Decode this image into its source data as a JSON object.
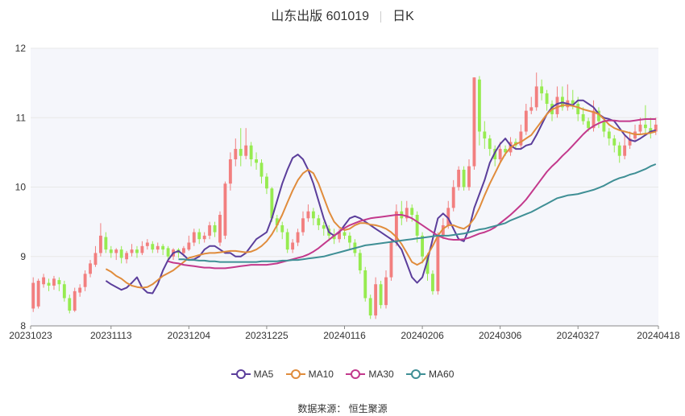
{
  "title": {
    "stock": "山东出版 601019",
    "period": "日K"
  },
  "source": "数据来源： 恒生聚源",
  "colors": {
    "up": "#f27f7f",
    "down": "#96eb50",
    "grid": "#e8e8e8",
    "plot_bg": "#f5f6fb"
  },
  "chart_data": {
    "type": "candlestick",
    "ylim": [
      8,
      12
    ],
    "yticks": [
      8,
      9,
      10,
      11,
      12
    ],
    "x_tick_labels": [
      "20231023",
      "20231113",
      "20231204",
      "20231225",
      "20240116",
      "20240206",
      "20240306",
      "20240327",
      "20240418"
    ],
    "x_tick_index": [
      0,
      15,
      30,
      45,
      60,
      75,
      90,
      105,
      120
    ],
    "num_days": 121,
    "legend": [
      {
        "name": "MA5",
        "color": "#5b3e9b"
      },
      {
        "name": "MA10",
        "color": "#e08c3c"
      },
      {
        "name": "MA30",
        "color": "#c3398c"
      },
      {
        "name": "MA60",
        "color": "#3f8f95"
      }
    ],
    "candles_ohlc": [
      [
        8.25,
        8.62,
        8.2,
        8.7
      ],
      [
        8.28,
        8.65,
        8.25,
        8.68
      ],
      [
        8.6,
        8.7,
        8.55,
        8.75
      ],
      [
        8.62,
        8.58,
        8.5,
        8.68
      ],
      [
        8.58,
        8.68,
        8.52,
        8.72
      ],
      [
        8.66,
        8.6,
        8.5,
        8.7
      ],
      [
        8.6,
        8.4,
        8.35,
        8.65
      ],
      [
        8.4,
        8.22,
        8.18,
        8.45
      ],
      [
        8.22,
        8.5,
        8.2,
        8.55
      ],
      [
        8.48,
        8.55,
        8.42,
        8.6
      ],
      [
        8.56,
        8.75,
        8.5,
        8.8
      ],
      [
        8.75,
        8.9,
        8.7,
        8.95
      ],
      [
        8.88,
        9.05,
        8.85,
        9.15
      ],
      [
        9.05,
        9.3,
        9.0,
        9.48
      ],
      [
        9.28,
        9.1,
        9.05,
        9.35
      ],
      [
        9.1,
        9.05,
        8.98,
        9.15
      ],
      [
        9.05,
        9.1,
        8.95,
        9.12
      ],
      [
        9.1,
        8.98,
        8.9,
        9.15
      ],
      [
        8.96,
        9.05,
        8.9,
        9.08
      ],
      [
        9.05,
        9.1,
        9.0,
        9.18
      ],
      [
        9.1,
        9.05,
        8.98,
        9.15
      ],
      [
        9.05,
        9.15,
        9.02,
        9.22
      ],
      [
        9.15,
        9.2,
        9.1,
        9.25
      ],
      [
        9.18,
        9.1,
        9.05,
        9.22
      ],
      [
        9.1,
        9.15,
        9.05,
        9.2
      ],
      [
        9.15,
        9.1,
        9.02,
        9.18
      ],
      [
        9.12,
        9.0,
        8.95,
        9.15
      ],
      [
        9.0,
        9.1,
        8.95,
        9.12
      ],
      [
        9.1,
        9.05,
        8.98,
        9.12
      ],
      [
        9.05,
        9.12,
        9.0,
        9.15
      ],
      [
        9.1,
        9.2,
        9.08,
        9.3
      ],
      [
        9.2,
        9.35,
        9.15,
        9.4
      ],
      [
        9.35,
        9.25,
        9.18,
        9.4
      ],
      [
        9.25,
        9.3,
        9.2,
        9.35
      ],
      [
        9.3,
        9.45,
        9.25,
        9.5
      ],
      [
        9.45,
        9.35,
        9.28,
        9.5
      ],
      [
        9.2,
        9.6,
        9.15,
        9.65
      ],
      [
        9.3,
        10.05,
        9.25,
        10.08
      ],
      [
        10.05,
        10.4,
        9.95,
        10.5
      ],
      [
        10.4,
        10.55,
        10.3,
        10.7
      ],
      [
        10.55,
        10.45,
        10.3,
        10.85
      ],
      [
        10.45,
        10.6,
        10.4,
        10.85
      ],
      [
        10.6,
        10.4,
        10.3,
        10.65
      ],
      [
        10.4,
        10.35,
        10.25,
        10.5
      ],
      [
        10.35,
        10.15,
        10.05,
        10.4
      ],
      [
        10.15,
        9.98,
        9.9,
        10.2
      ],
      [
        9.98,
        9.55,
        9.5,
        10.0
      ],
      [
        9.55,
        9.45,
        9.35,
        9.6
      ],
      [
        9.45,
        9.35,
        9.25,
        9.5
      ],
      [
        9.35,
        9.1,
        9.05,
        9.4
      ],
      [
        9.1,
        9.2,
        9.05,
        9.25
      ],
      [
        9.2,
        9.35,
        9.15,
        9.4
      ],
      [
        9.35,
        9.55,
        9.3,
        9.65
      ],
      [
        9.55,
        9.65,
        9.5,
        9.75
      ],
      [
        9.65,
        9.55,
        9.45,
        9.7
      ],
      [
        9.55,
        9.45,
        9.38,
        9.6
      ],
      [
        9.45,
        9.4,
        9.3,
        9.5
      ],
      [
        9.4,
        9.3,
        9.22,
        9.45
      ],
      [
        9.3,
        9.25,
        9.18,
        9.4
      ],
      [
        9.25,
        9.35,
        9.2,
        9.4
      ],
      [
        9.35,
        9.3,
        9.25,
        9.4
      ],
      [
        9.3,
        9.2,
        9.1,
        9.35
      ],
      [
        9.2,
        9.05,
        9.0,
        9.25
      ],
      [
        9.05,
        8.8,
        8.75,
        9.1
      ],
      [
        8.8,
        8.4,
        8.35,
        8.85
      ],
      [
        8.4,
        8.15,
        8.1,
        8.45
      ],
      [
        8.15,
        8.6,
        8.1,
        8.7
      ],
      [
        8.6,
        8.3,
        8.25,
        8.65
      ],
      [
        8.3,
        8.7,
        8.25,
        8.8
      ],
      [
        8.7,
        9.2,
        8.65,
        9.25
      ],
      [
        9.2,
        9.65,
        9.15,
        9.75
      ],
      [
        9.65,
        9.55,
        9.45,
        9.8
      ],
      [
        9.55,
        9.7,
        9.5,
        9.8
      ],
      [
        9.7,
        9.6,
        9.5,
        9.75
      ],
      [
        9.6,
        9.3,
        9.2,
        9.65
      ],
      [
        9.3,
        9.0,
        8.9,
        9.35
      ],
      [
        9.0,
        8.75,
        8.65,
        9.05
      ],
      [
        8.75,
        8.5,
        8.45,
        8.8
      ],
      [
        8.5,
        9.3,
        8.45,
        9.35
      ],
      [
        9.3,
        9.45,
        9.25,
        9.55
      ],
      [
        9.45,
        9.7,
        9.4,
        9.8
      ],
      [
        9.7,
        10.0,
        9.65,
        10.1
      ],
      [
        10.0,
        10.25,
        9.95,
        10.3
      ],
      [
        10.25,
        10.0,
        9.95,
        10.3
      ],
      [
        10.0,
        10.3,
        9.95,
        10.4
      ],
      [
        10.3,
        11.58,
        10.25,
        11.58
      ],
      [
        11.55,
        10.8,
        10.6,
        11.6
      ],
      [
        10.8,
        10.7,
        10.55,
        10.95
      ],
      [
        10.7,
        10.55,
        10.45,
        10.75
      ],
      [
        10.55,
        10.4,
        10.3,
        10.6
      ],
      [
        10.4,
        10.55,
        10.35,
        10.65
      ],
      [
        10.55,
        10.5,
        10.45,
        10.6
      ],
      [
        10.5,
        10.65,
        10.45,
        10.72
      ],
      [
        10.65,
        10.6,
        10.55,
        10.7
      ],
      [
        10.6,
        10.8,
        10.55,
        10.9
      ],
      [
        10.8,
        11.1,
        10.75,
        11.2
      ],
      [
        11.1,
        11.15,
        11.05,
        11.3
      ],
      [
        11.15,
        11.45,
        11.1,
        11.65
      ],
      [
        11.45,
        11.35,
        11.25,
        11.55
      ],
      [
        11.35,
        11.2,
        11.1,
        11.4
      ],
      [
        11.2,
        11.05,
        10.95,
        11.25
      ],
      [
        11.05,
        11.3,
        11.0,
        11.45
      ],
      [
        11.3,
        11.15,
        11.1,
        11.45
      ],
      [
        11.15,
        11.25,
        11.1,
        11.48
      ],
      [
        11.25,
        11.2,
        11.12,
        11.4
      ],
      [
        11.2,
        11.05,
        10.95,
        11.3
      ],
      [
        11.05,
        10.95,
        10.9,
        11.15
      ],
      [
        10.95,
        10.85,
        10.8,
        11.0
      ],
      [
        10.85,
        11.1,
        10.8,
        11.25
      ],
      [
        11.1,
        10.95,
        10.85,
        11.15
      ],
      [
        10.95,
        10.8,
        10.72,
        11.0
      ],
      [
        10.8,
        10.7,
        10.6,
        10.85
      ],
      [
        10.7,
        10.6,
        10.5,
        10.75
      ],
      [
        10.6,
        10.45,
        10.35,
        10.65
      ],
      [
        10.45,
        10.6,
        10.4,
        10.75
      ],
      [
        10.6,
        10.7,
        10.55,
        10.8
      ],
      [
        10.7,
        10.8,
        10.65,
        10.9
      ],
      [
        10.8,
        10.9,
        10.75,
        11.0
      ],
      [
        10.9,
        10.85,
        10.75,
        11.18
      ],
      [
        10.85,
        10.8,
        10.7,
        11.0
      ],
      [
        10.8,
        10.9,
        10.75,
        11.0
      ]
    ],
    "ma": {
      "MA5": [
        8.65,
        8.6,
        8.56,
        8.52,
        8.55,
        8.62,
        8.7,
        8.55,
        8.48,
        8.47,
        8.6,
        8.8,
        8.95,
        9.05,
        9.08,
        9.02,
        8.95,
        8.96,
        9.0,
        9.1,
        9.15,
        9.15,
        9.1,
        9.05,
        9.05,
        9.0,
        9.0,
        9.05,
        9.15,
        9.25,
        9.3,
        9.35,
        9.55,
        9.8,
        10.05,
        10.25,
        10.42,
        10.47,
        10.4,
        10.25,
        10.05,
        9.8,
        9.55,
        9.35,
        9.3,
        9.35,
        9.45,
        9.55,
        9.58,
        9.55,
        9.5,
        9.45,
        9.4,
        9.35,
        9.3,
        9.25,
        9.2,
        9.1,
        8.9,
        8.7,
        8.62,
        8.7,
        8.95,
        9.25,
        9.55,
        9.62,
        9.55,
        9.4,
        9.25,
        9.22,
        9.4,
        9.7,
        9.9,
        10.1,
        10.35,
        10.5,
        10.62,
        10.7,
        10.6,
        10.55,
        10.55,
        10.6,
        10.62,
        10.75,
        10.9,
        11.05,
        11.15,
        11.2,
        11.22,
        11.2,
        11.18,
        11.25,
        11.25,
        11.2,
        11.15,
        11.05,
        11.0,
        10.98,
        10.95,
        10.85,
        10.75,
        10.68,
        10.66,
        10.7,
        10.75,
        10.8,
        10.82
      ],
      "MA10": [
        8.82,
        8.78,
        8.72,
        8.68,
        8.62,
        8.58,
        8.56,
        8.55,
        8.56,
        8.6,
        8.66,
        8.72,
        8.76,
        8.8,
        8.86,
        8.92,
        8.98,
        9.0,
        9.02,
        9.04,
        9.05,
        9.05,
        9.06,
        9.07,
        9.08,
        9.08,
        9.07,
        9.06,
        9.07,
        9.1,
        9.15,
        9.22,
        9.32,
        9.45,
        9.6,
        9.78,
        9.95,
        10.1,
        10.2,
        10.25,
        10.2,
        10.05,
        9.85,
        9.65,
        9.5,
        9.42,
        9.38,
        9.4,
        9.45,
        9.48,
        9.48,
        9.46,
        9.45,
        9.43,
        9.4,
        9.35,
        9.28,
        9.18,
        9.05,
        8.92,
        8.88,
        8.92,
        9.02,
        9.15,
        9.3,
        9.4,
        9.45,
        9.45,
        9.42,
        9.4,
        9.45,
        9.55,
        9.7,
        9.88,
        10.05,
        10.2,
        10.35,
        10.48,
        10.57,
        10.62,
        10.65,
        10.7,
        10.75,
        10.85,
        10.95,
        11.05,
        11.12,
        11.15,
        11.18,
        11.18,
        11.17,
        11.15,
        11.12,
        11.1,
        11.08,
        11.05,
        10.98,
        10.9,
        10.85,
        10.82,
        10.8,
        10.78,
        10.76,
        10.76,
        10.77,
        10.78,
        10.8
      ],
      "MA30": [
        8.93,
        8.91,
        8.9,
        8.88,
        8.87,
        8.86,
        8.85,
        8.84,
        8.84,
        8.83,
        8.83,
        8.83,
        8.84,
        8.85,
        8.86,
        8.87,
        8.88,
        8.88,
        8.88,
        8.88,
        8.89,
        8.9,
        8.92,
        8.94,
        8.96,
        8.98,
        9.0,
        9.03,
        9.07,
        9.12,
        9.18,
        9.24,
        9.3,
        9.36,
        9.41,
        9.45,
        9.48,
        9.51,
        9.53,
        9.55,
        9.56,
        9.57,
        9.58,
        9.59,
        9.6,
        9.6,
        9.58,
        9.55,
        9.5,
        9.45,
        9.4,
        9.35,
        9.3,
        9.27,
        9.25,
        9.24,
        9.24,
        9.25,
        9.27,
        9.3,
        9.33,
        9.35,
        9.38,
        9.42,
        9.48,
        9.54,
        9.6,
        9.67,
        9.74,
        9.82,
        9.92,
        10.02,
        10.12,
        10.22,
        10.3,
        10.37,
        10.45,
        10.52,
        10.6,
        10.68,
        10.76,
        10.83,
        10.88,
        10.92,
        10.95,
        10.96,
        10.96,
        10.95,
        10.95,
        10.95,
        10.96,
        10.97,
        10.98,
        10.98,
        10.98
      ],
      "MA60": [
        8.96,
        8.96,
        8.95,
        8.95,
        8.94,
        8.94,
        8.93,
        8.93,
        8.92,
        8.92,
        8.92,
        8.92,
        8.92,
        8.92,
        8.92,
        8.92,
        8.93,
        8.93,
        8.93,
        8.93,
        8.94,
        8.94,
        8.95,
        8.95,
        8.96,
        8.97,
        8.98,
        8.99,
        9.0,
        9.02,
        9.04,
        9.06,
        9.08,
        9.1,
        9.12,
        9.14,
        9.16,
        9.17,
        9.18,
        9.19,
        9.2,
        9.21,
        9.22,
        9.23,
        9.24,
        9.25,
        9.26,
        9.27,
        9.28,
        9.29,
        9.3,
        9.3,
        9.3,
        9.31,
        9.32,
        9.33,
        9.35,
        9.37,
        9.39,
        9.4,
        9.42,
        9.44,
        9.46,
        9.48,
        9.52,
        9.55,
        9.58,
        9.61,
        9.64,
        9.68,
        9.72,
        9.76,
        9.8,
        9.84,
        9.86,
        9.88,
        9.89,
        9.9,
        9.92,
        9.94,
        9.96,
        9.99,
        10.02,
        10.06,
        10.1,
        10.13,
        10.15,
        10.18,
        10.2,
        10.23,
        10.26,
        10.3,
        10.33
      ]
    }
  }
}
